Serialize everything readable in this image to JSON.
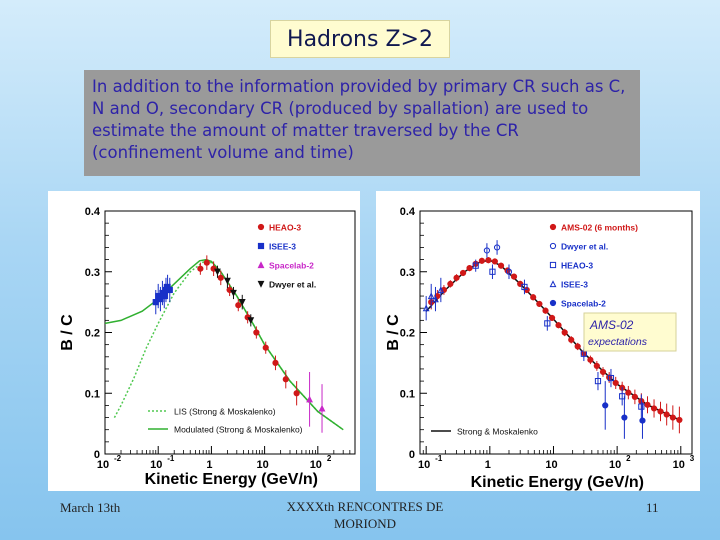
{
  "slide": {
    "title": "Hadrons Z>2",
    "body": "In addition to the information provided by primary CR such as C, N and O, secondary CR (produced by spallation) are used to estimate the amount of  matter traversed by the CR (confinement volume and time)",
    "footer_left": "March 13th",
    "footer_center": "XXXXth RENCONTRES DE MORIOND",
    "footer_right": "11"
  },
  "chart_data": [
    {
      "type": "scatter",
      "xscale": "log",
      "xlim": [
        0.01,
        500
      ],
      "ylim": [
        0,
        0.4
      ],
      "yticks": [
        {
          "v": 0,
          "label": "0"
        },
        {
          "v": 0.1,
          "label": "0.1"
        },
        {
          "v": 0.2,
          "label": "0.2"
        },
        {
          "v": 0.3,
          "label": "0.3"
        },
        {
          "v": 0.4,
          "label": "0.4"
        }
      ],
      "xticks": [
        {
          "v": 0.01,
          "base": "10",
          "exp": "-2"
        },
        {
          "v": 0.1,
          "base": "10",
          "exp": "-1"
        },
        {
          "v": 1,
          "base": "1",
          "exp": ""
        },
        {
          "v": 10,
          "base": "10",
          "exp": ""
        },
        {
          "v": 100,
          "base": "10",
          "exp": "2"
        }
      ],
      "xlabel": "Kinetic Energy (GeV/n)",
      "ylabel": "B / C",
      "legend_markers": [
        {
          "label": "HEAO-3",
          "color": "#d01818",
          "marker": "circle"
        },
        {
          "label": "ISEE-3",
          "color": "#1830c8",
          "marker": "square"
        },
        {
          "label": "Spacelab-2",
          "color": "#c828c8",
          "marker": "triangle"
        },
        {
          "label": "Dwyer et al.",
          "color": "#111111",
          "marker": "triangle-down"
        }
      ],
      "legend_lines": [
        {
          "label": "LIS (Strong & Moskalenko)",
          "color": "#50c850",
          "dash": "dotted"
        },
        {
          "label": "Modulated (Strong & Moskalenko)",
          "color": "#30b030",
          "dash": "solid"
        }
      ],
      "series": [
        {
          "name": "HEAO-3",
          "color": "#d01818",
          "marker": "circle",
          "points": [
            {
              "x": 0.62,
              "y": 0.305,
              "e": 0.01
            },
            {
              "x": 0.82,
              "y": 0.315,
              "e": 0.012
            },
            {
              "x": 1.1,
              "y": 0.305,
              "e": 0.012
            },
            {
              "x": 1.5,
              "y": 0.29,
              "e": 0.012
            },
            {
              "x": 2.2,
              "y": 0.27,
              "e": 0.01
            },
            {
              "x": 3.2,
              "y": 0.245,
              "e": 0.01
            },
            {
              "x": 4.8,
              "y": 0.225,
              "e": 0.01
            },
            {
              "x": 7,
              "y": 0.2,
              "e": 0.01
            },
            {
              "x": 10.5,
              "y": 0.175,
              "e": 0.01
            },
            {
              "x": 16,
              "y": 0.15,
              "e": 0.012
            },
            {
              "x": 25,
              "y": 0.123,
              "e": 0.015
            },
            {
              "x": 40,
              "y": 0.1,
              "e": 0.02
            }
          ]
        },
        {
          "name": "ISEE-3",
          "color": "#1830c8",
          "marker": "square",
          "points": [
            {
              "x": 0.09,
              "y": 0.25,
              "e": 0.02
            },
            {
              "x": 0.1,
              "y": 0.26,
              "e": 0.02
            },
            {
              "x": 0.11,
              "y": 0.255,
              "e": 0.02
            },
            {
              "x": 0.12,
              "y": 0.265,
              "e": 0.02
            },
            {
              "x": 0.13,
              "y": 0.26,
              "e": 0.02
            },
            {
              "x": 0.14,
              "y": 0.27,
              "e": 0.02
            },
            {
              "x": 0.15,
              "y": 0.275,
              "e": 0.02
            },
            {
              "x": 0.165,
              "y": 0.27,
              "e": 0.02
            }
          ]
        },
        {
          "name": "Spacelab-2",
          "color": "#c828c8",
          "marker": "triangle",
          "points": [
            {
              "x": 70,
              "y": 0.09,
              "e": 0.045
            },
            {
              "x": 120,
              "y": 0.075,
              "e": 0.04
            }
          ]
        },
        {
          "name": "Dwyer et al.",
          "color": "#111111",
          "marker": "triangle-down",
          "points": [
            {
              "x": 1.3,
              "y": 0.3,
              "e": 0.01
            },
            {
              "x": 2.0,
              "y": 0.285,
              "e": 0.012
            },
            {
              "x": 2.6,
              "y": 0.265,
              "e": 0.01
            },
            {
              "x": 3.8,
              "y": 0.25,
              "e": 0.012
            },
            {
              "x": 5.5,
              "y": 0.22,
              "e": 0.01
            }
          ]
        }
      ],
      "lines": [
        {
          "name": "LIS (Strong & Moskalenko)",
          "color": "#50c850",
          "dash": "dotted",
          "points": [
            [
              0.015,
              0.06
            ],
            [
              0.02,
              0.08
            ],
            [
              0.035,
              0.125
            ],
            [
              0.06,
              0.175
            ],
            [
              0.1,
              0.215
            ],
            [
              0.2,
              0.265
            ],
            [
              0.4,
              0.3
            ],
            [
              0.7,
              0.316
            ],
            [
              1.0,
              0.315
            ],
            [
              1.5,
              0.3
            ],
            [
              3,
              0.26
            ],
            [
              6,
              0.215
            ],
            [
              10,
              0.18
            ],
            [
              30,
              0.12
            ],
            [
              100,
              0.07
            ],
            [
              300,
              0.04
            ]
          ]
        },
        {
          "name": "Modulated (Strong & Moskalenko)",
          "color": "#30b030",
          "dash": "solid",
          "points": [
            [
              0.01,
              0.215
            ],
            [
              0.02,
              0.22
            ],
            [
              0.05,
              0.235
            ],
            [
              0.1,
              0.255
            ],
            [
              0.2,
              0.28
            ],
            [
              0.4,
              0.305
            ],
            [
              0.6,
              0.318
            ],
            [
              0.8,
              0.32
            ],
            [
              1.0,
              0.317
            ],
            [
              1.5,
              0.3
            ],
            [
              3,
              0.26
            ],
            [
              6,
              0.215
            ],
            [
              10,
              0.18
            ],
            [
              30,
              0.12
            ],
            [
              100,
              0.07
            ],
            [
              300,
              0.04
            ]
          ]
        }
      ]
    },
    {
      "type": "scatter",
      "xscale": "log",
      "xlim": [
        0.08,
        1500
      ],
      "ylim": [
        0,
        0.4
      ],
      "yticks": [
        {
          "v": 0,
          "label": "0"
        },
        {
          "v": 0.1,
          "label": "0.1"
        },
        {
          "v": 0.2,
          "label": "0.2"
        },
        {
          "v": 0.3,
          "label": "0.3"
        },
        {
          "v": 0.4,
          "label": "0.4"
        }
      ],
      "xticks": [
        {
          "v": 0.1,
          "base": "10",
          "exp": "-1"
        },
        {
          "v": 1,
          "base": "1",
          "exp": ""
        },
        {
          "v": 10,
          "base": "10",
          "exp": ""
        },
        {
          "v": 100,
          "base": "10",
          "exp": "2"
        },
        {
          "v": 1000,
          "base": "10",
          "exp": "3"
        }
      ],
      "xlabel": "Kinetic Energy (GeV/n)",
      "ylabel": "B / C",
      "legend_markers": [
        {
          "label": "AMS-02 (6 months)",
          "color": "#d01818",
          "marker": "circle"
        },
        {
          "label": "Dwyer et al.",
          "color": "#1830c8",
          "marker": "circle-open"
        },
        {
          "label": "HEAO-3",
          "color": "#1830c8",
          "marker": "square-open"
        },
        {
          "label": "ISEE-3",
          "color": "#1830c8",
          "marker": "triangle-open"
        },
        {
          "label": "Spacelab-2",
          "color": "#1830c8",
          "marker": "circle"
        }
      ],
      "legend_lines": [
        {
          "label": "Strong & Moskalenko",
          "color": "#111111",
          "dash": "solid"
        }
      ],
      "annotation": {
        "title": "AMS-02",
        "subtitle": "expectations"
      },
      "series": [
        {
          "name": "AMS-02 (6 months)",
          "color": "#d01818",
          "marker": "circle",
          "points": [
            {
              "x": 0.12,
              "y": 0.25,
              "e": 0.012
            },
            {
              "x": 0.15,
              "y": 0.26,
              "e": 0.01
            },
            {
              "x": 0.19,
              "y": 0.27,
              "e": 0.008
            },
            {
              "x": 0.24,
              "y": 0.28,
              "e": 0.006
            },
            {
              "x": 0.3,
              "y": 0.29,
              "e": 0.006
            },
            {
              "x": 0.38,
              "y": 0.298,
              "e": 0.005
            },
            {
              "x": 0.48,
              "y": 0.306,
              "e": 0.005
            },
            {
              "x": 0.6,
              "y": 0.313,
              "e": 0.005
            },
            {
              "x": 0.75,
              "y": 0.318,
              "e": 0.005
            },
            {
              "x": 0.95,
              "y": 0.319,
              "e": 0.005
            },
            {
              "x": 1.2,
              "y": 0.317,
              "e": 0.005
            },
            {
              "x": 1.5,
              "y": 0.31,
              "e": 0.005
            },
            {
              "x": 1.9,
              "y": 0.302,
              "e": 0.005
            },
            {
              "x": 2.4,
              "y": 0.292,
              "e": 0.005
            },
            {
              "x": 3,
              "y": 0.28,
              "e": 0.005
            },
            {
              "x": 3.8,
              "y": 0.27,
              "e": 0.005
            },
            {
              "x": 4.8,
              "y": 0.258,
              "e": 0.005
            },
            {
              "x": 6,
              "y": 0.247,
              "e": 0.005
            },
            {
              "x": 7.5,
              "y": 0.236,
              "e": 0.005
            },
            {
              "x": 9.5,
              "y": 0.224,
              "e": 0.005
            },
            {
              "x": 12,
              "y": 0.212,
              "e": 0.005
            },
            {
              "x": 15,
              "y": 0.2,
              "e": 0.006
            },
            {
              "x": 19,
              "y": 0.188,
              "e": 0.006
            },
            {
              "x": 24,
              "y": 0.177,
              "e": 0.006
            },
            {
              "x": 30,
              "y": 0.166,
              "e": 0.007
            },
            {
              "x": 38,
              "y": 0.155,
              "e": 0.007
            },
            {
              "x": 48,
              "y": 0.145,
              "e": 0.008
            },
            {
              "x": 60,
              "y": 0.135,
              "e": 0.008
            },
            {
              "x": 75,
              "y": 0.126,
              "e": 0.009
            },
            {
              "x": 95,
              "y": 0.117,
              "e": 0.01
            },
            {
              "x": 120,
              "y": 0.109,
              "e": 0.01
            },
            {
              "x": 150,
              "y": 0.101,
              "e": 0.011
            },
            {
              "x": 190,
              "y": 0.094,
              "e": 0.012
            },
            {
              "x": 240,
              "y": 0.087,
              "e": 0.013
            },
            {
              "x": 300,
              "y": 0.081,
              "e": 0.014
            },
            {
              "x": 380,
              "y": 0.075,
              "e": 0.015
            },
            {
              "x": 480,
              "y": 0.07,
              "e": 0.016
            },
            {
              "x": 600,
              "y": 0.065,
              "e": 0.018
            },
            {
              "x": 750,
              "y": 0.06,
              "e": 0.02
            },
            {
              "x": 950,
              "y": 0.056,
              "e": 0.022
            }
          ]
        },
        {
          "name": "Dwyer et al.",
          "color": "#1830c8",
          "marker": "circle-open",
          "points": [
            {
              "x": 0.9,
              "y": 0.335,
              "e": 0.012
            },
            {
              "x": 1.3,
              "y": 0.34,
              "e": 0.012
            },
            {
              "x": 2.0,
              "y": 0.3,
              "e": 0.012
            }
          ]
        },
        {
          "name": "HEAO-3",
          "color": "#1830c8",
          "marker": "square-open",
          "points": [
            {
              "x": 0.6,
              "y": 0.31,
              "e": 0.01
            },
            {
              "x": 1.1,
              "y": 0.3,
              "e": 0.012
            },
            {
              "x": 3.5,
              "y": 0.275,
              "e": 0.012
            },
            {
              "x": 8,
              "y": 0.215,
              "e": 0.012
            },
            {
              "x": 30,
              "y": 0.165,
              "e": 0.012
            },
            {
              "x": 50,
              "y": 0.12,
              "e": 0.015
            },
            {
              "x": 80,
              "y": 0.125,
              "e": 0.015
            },
            {
              "x": 120,
              "y": 0.095,
              "e": 0.015
            },
            {
              "x": 240,
              "y": 0.078,
              "e": 0.02
            }
          ]
        },
        {
          "name": "ISEE-3",
          "color": "#1830c8",
          "marker": "triangle-open",
          "points": [
            {
              "x": 0.1,
              "y": 0.24,
              "e": 0.02
            },
            {
              "x": 0.12,
              "y": 0.26,
              "e": 0.02
            },
            {
              "x": 0.14,
              "y": 0.255,
              "e": 0.02
            },
            {
              "x": 0.17,
              "y": 0.27,
              "e": 0.02
            }
          ]
        },
        {
          "name": "Spacelab-2",
          "color": "#1830c8",
          "marker": "circle",
          "points": [
            {
              "x": 65,
              "y": 0.08,
              "e": 0.04
            },
            {
              "x": 130,
              "y": 0.06,
              "e": 0.035
            },
            {
              "x": 250,
              "y": 0.055,
              "e": 0.03
            }
          ]
        }
      ],
      "lines": [
        {
          "name": "Strong & Moskalenko",
          "color": "#111111",
          "dash": "solid",
          "points": [
            [
              0.1,
              0.235
            ],
            [
              0.2,
              0.27
            ],
            [
              0.4,
              0.3
            ],
            [
              0.7,
              0.316
            ],
            [
              1.0,
              0.319
            ],
            [
              1.5,
              0.31
            ],
            [
              3,
              0.28
            ],
            [
              6,
              0.247
            ],
            [
              10,
              0.222
            ],
            [
              30,
              0.166
            ],
            [
              100,
              0.115
            ],
            [
              300,
              0.081
            ],
            [
              1000,
              0.055
            ]
          ]
        }
      ]
    }
  ]
}
